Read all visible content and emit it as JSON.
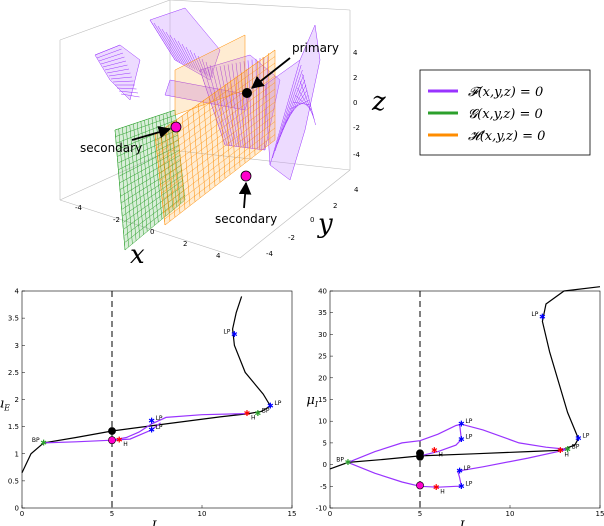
{
  "surface_plot": {
    "axis_x": "x",
    "axis_y": "y",
    "axis_z": "z",
    "x_ticks": [
      "-4",
      "-2",
      "0",
      "2",
      "4"
    ],
    "y_ticks": [
      "4",
      "2",
      "0",
      "-2",
      "-4"
    ],
    "z_ticks": [
      "4",
      "2",
      "0",
      "-2",
      "-4"
    ],
    "annotation_primary": "primary",
    "annotation_secondary_left": "secondary",
    "annotation_secondary_bottom": "secondary",
    "colors": {
      "F": "#9933ff",
      "G": "#2ca02c",
      "H": "#ff8c00",
      "primary_point": "#000000",
      "secondary_point": "#ff00cc"
    }
  },
  "legend": {
    "items": [
      {
        "label": "𝓕(x,y,z) = 0",
        "color": "#9933ff"
      },
      {
        "label": "𝓖(x,y,z) = 0",
        "color": "#2ca02c"
      },
      {
        "label": "𝓗(x,y,z) = 0",
        "color": "#ff8c00"
      }
    ]
  },
  "chart_data": [
    {
      "type": "line",
      "xlabel": "I_E",
      "ylabel": "μ_E",
      "xlim": [
        0,
        15
      ],
      "ylim": [
        0,
        4
      ],
      "x_ticks": [
        "0",
        "5",
        "10",
        "15"
      ],
      "y_ticks": [
        "0",
        "0.5",
        "1",
        "1.5",
        "2",
        "2.5",
        "3",
        "3.5",
        "4"
      ],
      "dashed_vline_x": 5,
      "series": [
        {
          "color": "#000000",
          "points": [
            [
              0,
              0.65
            ],
            [
              0.5,
              1.0
            ],
            [
              1.2,
              1.2
            ],
            [
              3,
              1.3
            ],
            [
              5,
              1.42
            ],
            [
              8,
              1.55
            ],
            [
              11,
              1.68
            ],
            [
              12.6,
              1.74
            ],
            [
              13.3,
              1.78
            ],
            [
              13.8,
              1.88
            ],
            [
              13.4,
              2.1
            ],
            [
              12.4,
              2.5
            ],
            [
              11.8,
              3.0
            ],
            [
              11.7,
              3.3
            ],
            [
              11.9,
              3.6
            ],
            [
              12.2,
              3.9
            ]
          ]
        },
        {
          "color": "#9933ff",
          "points": [
            [
              1.2,
              1.2
            ],
            [
              3,
              1.22
            ],
            [
              5,
              1.25
            ],
            [
              5.8,
              1.3
            ],
            [
              6.5,
              1.4
            ],
            [
              7.2,
              1.55
            ],
            [
              8,
              1.67
            ],
            [
              10,
              1.72
            ],
            [
              12.4,
              1.74
            ]
          ]
        },
        {
          "color": "#9933ff",
          "points": [
            [
              5,
              1.25
            ],
            [
              6,
              1.27
            ],
            [
              7.2,
              1.44
            ],
            [
              7.7,
              1.57
            ]
          ]
        }
      ],
      "markers": [
        {
          "x": 1.2,
          "y": 1.2,
          "label": "BP",
          "color": "#2ca02c"
        },
        {
          "x": 5,
          "y": 1.42,
          "label": "",
          "color": "#000000"
        },
        {
          "x": 5,
          "y": 1.25,
          "label": "",
          "color": "#ff00cc"
        },
        {
          "x": 5.4,
          "y": 1.25,
          "label": "H",
          "color": "#ff0000"
        },
        {
          "x": 7.2,
          "y": 1.44,
          "label": "LP",
          "color": "#0000ff"
        },
        {
          "x": 7.2,
          "y": 1.6,
          "label": "LP",
          "color": "#0000ff"
        },
        {
          "x": 12.5,
          "y": 1.74,
          "label": "H",
          "color": "#ff0000"
        },
        {
          "x": 13.1,
          "y": 1.74,
          "label": "BP",
          "color": "#2ca02c"
        },
        {
          "x": 13.8,
          "y": 1.88,
          "label": "LP",
          "color": "#0000ff"
        },
        {
          "x": 11.8,
          "y": 3.2,
          "label": "LP",
          "color": "#0000ff"
        }
      ]
    },
    {
      "type": "line",
      "xlabel": "I_E",
      "ylabel": "μ_I",
      "xlim": [
        0,
        15
      ],
      "ylim": [
        -10,
        40
      ],
      "x_ticks": [
        "0",
        "5",
        "10",
        "15"
      ],
      "y_ticks": [
        "-10",
        "-5",
        "0",
        "5",
        "10",
        "15",
        "20",
        "25",
        "30",
        "35",
        "40"
      ],
      "dashed_vline_x": 5,
      "series": [
        {
          "color": "#000000",
          "points": [
            [
              0,
              -1
            ],
            [
              1,
              0.5
            ],
            [
              3,
              1.2
            ],
            [
              5,
              2
            ],
            [
              8,
              2.5
            ],
            [
              11,
              3
            ],
            [
              12.8,
              3.3
            ],
            [
              13.6,
              4.5
            ],
            [
              13.8,
              6
            ],
            [
              13.2,
              12
            ],
            [
              12.2,
              26
            ],
            [
              11.8,
              33
            ],
            [
              12,
              37
            ],
            [
              13,
              40
            ],
            [
              15,
              41
            ]
          ]
        },
        {
          "color": "#9933ff",
          "points": [
            [
              1,
              0.5
            ],
            [
              2.5,
              3
            ],
            [
              4,
              5
            ],
            [
              5,
              5.5
            ],
            [
              6,
              7
            ],
            [
              7,
              9
            ],
            [
              7.3,
              9.3
            ],
            [
              8.5,
              8
            ],
            [
              10.5,
              5
            ],
            [
              12,
              4
            ],
            [
              13.2,
              3.5
            ]
          ]
        },
        {
          "color": "#9933ff",
          "points": [
            [
              1,
              0.5
            ],
            [
              2.5,
              -2
            ],
            [
              4,
              -4
            ],
            [
              5,
              -5
            ],
            [
              6,
              -5.2
            ],
            [
              7,
              -5
            ],
            [
              7.3,
              -5
            ],
            [
              7.2,
              -3
            ],
            [
              7.1,
              -1.5
            ],
            [
              8.5,
              -0.5
            ],
            [
              11,
              1.5
            ],
            [
              13.2,
              3.5
            ]
          ]
        },
        {
          "color": "#9933ff",
          "points": [
            [
              5,
              2
            ],
            [
              6,
              3
            ],
            [
              7,
              4.5
            ],
            [
              7.3,
              5.8
            ],
            [
              7.2,
              9.3
            ]
          ]
        }
      ],
      "markers": [
        {
          "x": 1,
          "y": 0.5,
          "label": "BP",
          "color": "#2ca02c"
        },
        {
          "x": 5,
          "y": 2.6,
          "label": "",
          "color": "#000000"
        },
        {
          "x": 5,
          "y": 1.8,
          "label": "",
          "color": "#000000"
        },
        {
          "x": 5,
          "y": -4.8,
          "label": "",
          "color": "#ff00cc"
        },
        {
          "x": 5.8,
          "y": 3.2,
          "label": "H",
          "color": "#ff0000"
        },
        {
          "x": 5.9,
          "y": -5.3,
          "label": "H",
          "color": "#ff0000"
        },
        {
          "x": 7.3,
          "y": 9.3,
          "label": "LP",
          "color": "#0000ff"
        },
        {
          "x": 7.3,
          "y": 5.8,
          "label": "LP",
          "color": "#0000ff"
        },
        {
          "x": 7.2,
          "y": -1.5,
          "label": "LP",
          "color": "#0000ff"
        },
        {
          "x": 7.3,
          "y": -5,
          "label": "LP",
          "color": "#0000ff"
        },
        {
          "x": 12.8,
          "y": 3.3,
          "label": "H",
          "color": "#ff0000"
        },
        {
          "x": 13.2,
          "y": 3.5,
          "label": "BP",
          "color": "#2ca02c"
        },
        {
          "x": 13.8,
          "y": 6,
          "label": "LP",
          "color": "#0000ff"
        },
        {
          "x": 11.8,
          "y": 34,
          "label": "LP",
          "color": "#0000ff"
        }
      ]
    }
  ]
}
